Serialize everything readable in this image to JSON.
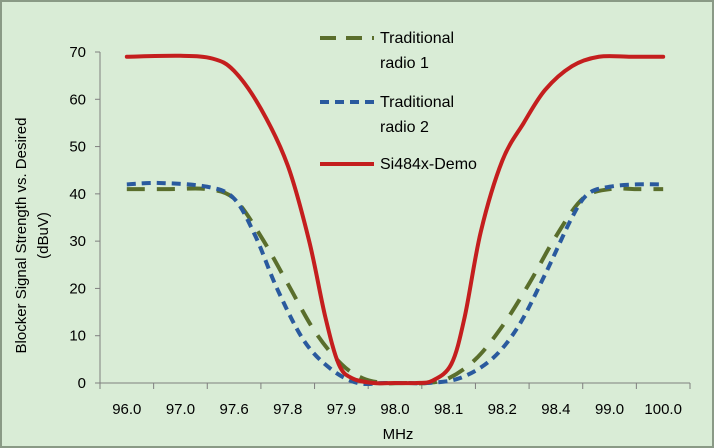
{
  "chart_data": {
    "type": "line",
    "title": "",
    "xlabel": "MHz",
    "ylabel_lines": [
      "Blocker Signal Strength vs. Desired",
      "(dBuV)"
    ],
    "categories": [
      "96.0",
      "97.0",
      "97.6",
      "97.8",
      "97.9",
      "98.0",
      "98.1",
      "98.2",
      "98.4",
      "99.0",
      "100.0"
    ],
    "ylim": [
      0,
      70
    ],
    "yticks": [
      0,
      10,
      20,
      30,
      40,
      50,
      60,
      70
    ],
    "legend_position": "top-center",
    "series": [
      {
        "name": "Traditional radio 1",
        "name_lines": [
          "Traditional",
          "radio 1"
        ],
        "color": "#5a6e2c",
        "style": "long-dash",
        "points": [
          [
            0,
            41
          ],
          [
            0.8,
            41
          ],
          [
            1.5,
            41
          ],
          [
            2,
            39
          ],
          [
            2.5,
            31
          ],
          [
            3,
            21
          ],
          [
            3.5,
            11
          ],
          [
            4,
            4
          ],
          [
            4.4,
            1
          ],
          [
            4.8,
            0
          ],
          [
            5.2,
            0
          ],
          [
            5.6,
            0
          ],
          [
            6,
            1
          ],
          [
            6.5,
            5
          ],
          [
            7,
            12
          ],
          [
            7.5,
            21
          ],
          [
            8,
            31
          ],
          [
            8.5,
            39
          ],
          [
            9,
            41
          ],
          [
            9.5,
            41
          ],
          [
            10,
            41
          ]
        ]
      },
      {
        "name": "Traditional radio 2",
        "name_lines": [
          "Traditional",
          "radio 2"
        ],
        "color": "#2a5a9e",
        "style": "short-dash",
        "points": [
          [
            0,
            42
          ],
          [
            0.6,
            42.3
          ],
          [
            1.5,
            41.5
          ],
          [
            2,
            39
          ],
          [
            2.4,
            31
          ],
          [
            2.8,
            20
          ],
          [
            3.3,
            9
          ],
          [
            3.8,
            3
          ],
          [
            4.3,
            0
          ],
          [
            4.8,
            0
          ],
          [
            5.2,
            0
          ],
          [
            5.6,
            0
          ],
          [
            6.2,
            1
          ],
          [
            6.8,
            5
          ],
          [
            7.3,
            12
          ],
          [
            7.8,
            23
          ],
          [
            8.3,
            35
          ],
          [
            8.6,
            40
          ],
          [
            9,
            41.5
          ],
          [
            9.5,
            42
          ],
          [
            10,
            42
          ]
        ]
      },
      {
        "name": "Si484x-Demo",
        "name_lines": [
          "Si484x-Demo"
        ],
        "color": "#c41e1e",
        "style": "solid",
        "points": [
          [
            0,
            69
          ],
          [
            1,
            69.2
          ],
          [
            1.6,
            68.6
          ],
          [
            2,
            66
          ],
          [
            2.5,
            58
          ],
          [
            3,
            46
          ],
          [
            3.4,
            30
          ],
          [
            3.7,
            14
          ],
          [
            3.95,
            4
          ],
          [
            4.2,
            1
          ],
          [
            4.6,
            0
          ],
          [
            5,
            0
          ],
          [
            5.4,
            0
          ],
          [
            5.7,
            0.5
          ],
          [
            6.05,
            4
          ],
          [
            6.3,
            14
          ],
          [
            6.6,
            32
          ],
          [
            7,
            47
          ],
          [
            7.4,
            55
          ],
          [
            7.8,
            62
          ],
          [
            8.3,
            67
          ],
          [
            8.8,
            69
          ],
          [
            9.4,
            69
          ],
          [
            10,
            69
          ]
        ]
      }
    ]
  }
}
